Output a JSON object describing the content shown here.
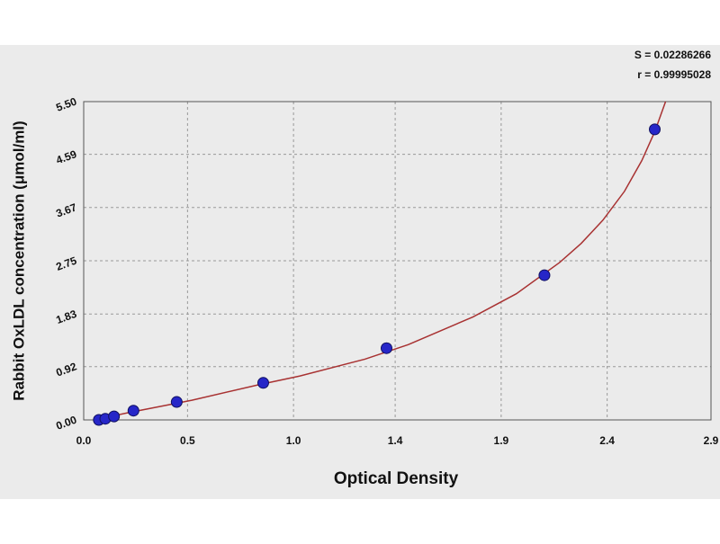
{
  "chart_data": {
    "type": "scatter",
    "x_label": "Optical Density",
    "y_label": "Rabbit OxLDL concentration (μmol/ml)",
    "annotations": [
      "S = 0.02286266",
      "r = 0.99995028"
    ],
    "xlim": [
      0,
      2.9
    ],
    "ylim": [
      0,
      5.5
    ],
    "xticks": [
      {
        "value": 0,
        "label": "0.0"
      },
      {
        "value": 0.48,
        "label": "0.5"
      },
      {
        "value": 0.97,
        "label": "1.0"
      },
      {
        "value": 1.44,
        "label": "1.4"
      },
      {
        "value": 1.93,
        "label": "1.9"
      },
      {
        "value": 2.42,
        "label": "2.4"
      },
      {
        "value": 2.9,
        "label": "2.9"
      }
    ],
    "yticks": [
      {
        "value": 0,
        "label": "0.00"
      },
      {
        "value": 0.92,
        "label": "0.92"
      },
      {
        "value": 1.83,
        "label": "1.83"
      },
      {
        "value": 2.75,
        "label": "2.75"
      },
      {
        "value": 3.67,
        "label": "3.67"
      },
      {
        "value": 4.59,
        "label": "4.59"
      },
      {
        "value": 5.5,
        "label": "5.50"
      }
    ],
    "grid": true,
    "series": [
      {
        "color": "#2626c8",
        "x": [
          0.07,
          0.1,
          0.14,
          0.23,
          0.43,
          0.83,
          1.4,
          2.13,
          2.64
        ],
        "values": [
          0,
          0.02,
          0.06,
          0.16,
          0.31,
          0.64,
          1.24,
          2.5,
          5.02
        ]
      }
    ],
    "curve": {
      "color": "#a83232",
      "x": [
        0.05,
        0.2,
        0.5,
        0.8,
        1.0,
        1.3,
        1.5,
        1.8,
        2.0,
        2.2,
        2.3,
        2.4,
        2.5,
        2.58,
        2.64,
        2.69
      ],
      "values": [
        0,
        0.12,
        0.34,
        0.6,
        0.76,
        1.05,
        1.3,
        1.78,
        2.18,
        2.72,
        3.05,
        3.45,
        3.95,
        4.48,
        4.98,
        5.5
      ]
    }
  }
}
